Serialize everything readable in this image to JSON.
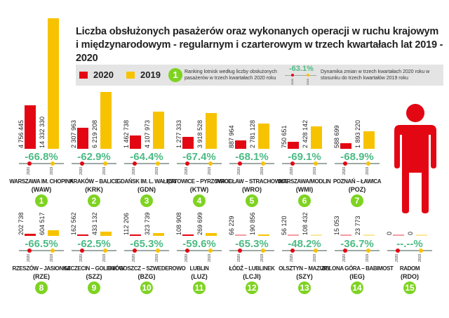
{
  "title": [
    "Liczba obsłużonych pasażerów oraz wykonanych operacji w ruchu krajowym",
    "i międzynarodowym - regularnym i czarterowym w trzech kwartałach lat 2019 - 2020"
  ],
  "legend": {
    "y2020": "2020",
    "y2019": "2019",
    "rank_example": "1",
    "rank_text": "Ranking lotnisk według liczby obsłużonych pasażerów w trzech kwartałach 2020 roku",
    "dyn_example": "-63.1%",
    "dyn_text": "Dynamika zmian w trzech kwartałach 2020 roku w stosunku do trzech kwartałów 2019 roku",
    "axis_2020": "2020",
    "axis_2019": "2019"
  },
  "colors": {
    "y2020": "#e30613",
    "y2019": "#f7c300",
    "pct": "#4dbb85",
    "rank": "#7ed321",
    "legend_bg": "#e4e4e4",
    "person": "#e30613"
  },
  "person_icon": "person-icon",
  "chart_data": {
    "type": "bar",
    "categories": [
      "WAW",
      "KRK",
      "GDN",
      "KTW",
      "WRO",
      "WMI",
      "POZ",
      "RZE",
      "SZZ",
      "BZG",
      "LUZ",
      "LCJ",
      "SZY",
      "IEG",
      "RDO"
    ],
    "series": [
      {
        "name": "2020",
        "values": [
          4756445,
          2307963,
          1462738,
          1277333,
          887964,
          750651,
          588699,
          202738,
          162562,
          112206,
          108908,
          66229,
          56120,
          15053,
          0
        ]
      },
      {
        "name": "2019",
        "values": [
          14332330,
          6219208,
          4107973,
          3918528,
          2781128,
          2428142,
          1893220,
          604517,
          433132,
          323739,
          269699,
          190856,
          108432,
          23773,
          0
        ]
      }
    ]
  },
  "airports": [
    {
      "rank": "1",
      "name": "WARSZAWA IM. CHOPINA",
      "code": "(WAW)",
      "v2020": "4 756 445",
      "v2019": "14 332 330",
      "pct": "-66.8%"
    },
    {
      "rank": "2",
      "name": "KRAKÓW – BALICE",
      "code": "(KRK)",
      "v2020": "2 307 963",
      "v2019": "6 219 208",
      "pct": "-62.9%"
    },
    {
      "rank": "3",
      "name": "GDAŃSK IM. L. WAŁĘSY",
      "code": "(GDN)",
      "v2020": "1 462 738",
      "v2019": "4 107 973",
      "pct": "-64.4%"
    },
    {
      "rank": "4",
      "name": "KATOWICE – PYRZOWICE",
      "code": "(KTW)",
      "v2020": "1 277 333",
      "v2019": "3 918 528",
      "pct": "-67.4%"
    },
    {
      "rank": "5",
      "name": "WROCŁAW – STRACHOWICE",
      "code": "(WRO)",
      "v2020": "887 964",
      "v2019": "2 781 128",
      "pct": "-68.1%"
    },
    {
      "rank": "6",
      "name": "WARSZAWA/MODLIN",
      "code": "(WMI)",
      "v2020": "750 651",
      "v2019": "2 428 142",
      "pct": "-69.1%"
    },
    {
      "rank": "7",
      "name": "POZNAŃ – ŁAWICA",
      "code": "(POZ)",
      "v2020": "588 699",
      "v2019": "1 893 220",
      "pct": "-68.9%"
    },
    {
      "rank": "8",
      "name": "RZESZÓW – JASIONKA",
      "code": "(RZE)",
      "v2020": "202 738",
      "v2019": "604 517",
      "pct": "-66.5%"
    },
    {
      "rank": "9",
      "name": "SZCZECIN – GOLENIÓW",
      "code": "(SZZ)",
      "v2020": "162 562",
      "v2019": "433 132",
      "pct": "-62.5%"
    },
    {
      "rank": "10",
      "name": "BYDGOSZCZ – SZWEDEROWO",
      "code": "(BZG)",
      "v2020": "112 206",
      "v2019": "323 739",
      "pct": "-65.3%"
    },
    {
      "rank": "11",
      "name": "LUBLIN",
      "code": "(LUZ)",
      "v2020": "108 908",
      "v2019": "269 699",
      "pct": "-59.6%"
    },
    {
      "rank": "12",
      "name": "ŁÓDŹ – LUBLINEK",
      "code": "(LCJI)",
      "v2020": "66 229",
      "v2019": "190 856",
      "pct": "-65.3%"
    },
    {
      "rank": "13",
      "name": "OLSZTYN – MAZURY",
      "code": "(SZY)",
      "v2020": "56 120",
      "v2019": "108 432",
      "pct": "-48.2%"
    },
    {
      "rank": "14",
      "name": "ZIELONA GÓRA – BABIMOST",
      "code": "(IEG)",
      "v2020": "15 053",
      "v2019": "23 773",
      "pct": "-36.7%"
    },
    {
      "rank": "15",
      "name": "RADOM",
      "code": "(RDO)",
      "v2020": "0",
      "v2019": "0",
      "pct": "--.--%"
    }
  ]
}
